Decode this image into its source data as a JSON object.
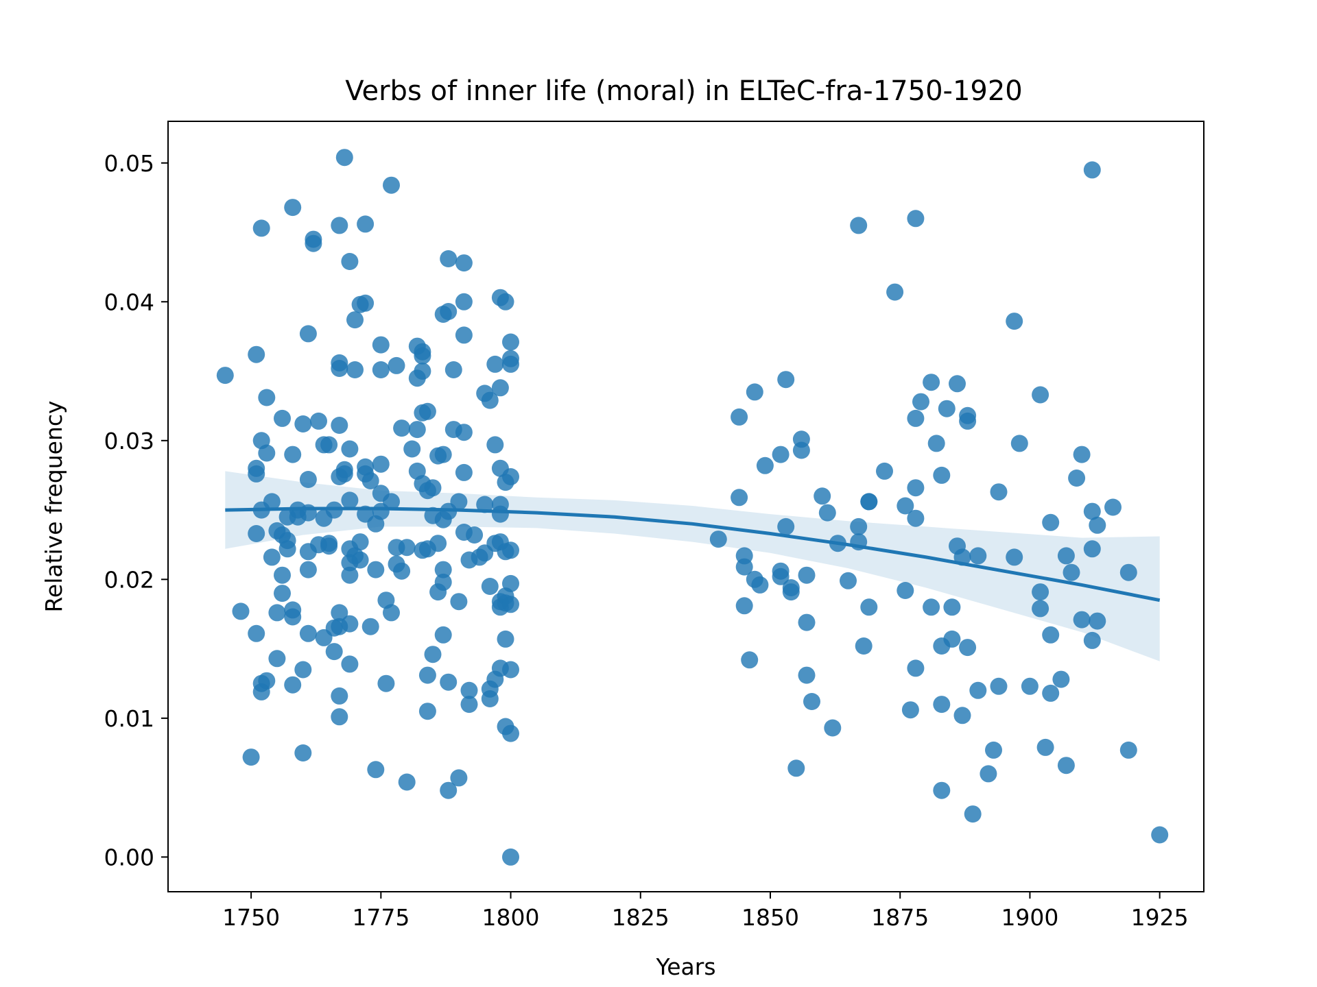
{
  "chart_data": {
    "type": "scatter",
    "title": "Verbs of inner life (moral) in ELTeC-fra-1750-1920",
    "xlabel": "Years",
    "ylabel": "Relative frequency",
    "xlim": [
      1734,
      1933.5
    ],
    "ylim": [
      -0.0025,
      0.053
    ],
    "xticks": [
      1750,
      1775,
      1800,
      1825,
      1850,
      1875,
      1900,
      1925
    ],
    "yticks": [
      0.0,
      0.01,
      0.02,
      0.03,
      0.04,
      0.05
    ],
    "xtick_labels": [
      "1750",
      "1775",
      "1800",
      "1825",
      "1850",
      "1875",
      "1900",
      "1925"
    ],
    "ytick_labels": [
      "0.00",
      "0.01",
      "0.02",
      "0.03",
      "0.04",
      "0.05"
    ],
    "grid": false,
    "legend": "none",
    "colors": {
      "points": "#1f77b4",
      "trend": "#1f77b4",
      "band": "#1f77b4"
    },
    "points": [
      [
        1745,
        0.0347
      ],
      [
        1748,
        0.0177
      ],
      [
        1750,
        0.0072
      ],
      [
        1751,
        0.0362
      ],
      [
        1751,
        0.028
      ],
      [
        1751,
        0.0276
      ],
      [
        1751,
        0.0233
      ],
      [
        1751,
        0.0161
      ],
      [
        1752,
        0.0453
      ],
      [
        1752,
        0.03
      ],
      [
        1752,
        0.025
      ],
      [
        1752,
        0.0125
      ],
      [
        1752,
        0.0119
      ],
      [
        1753,
        0.0331
      ],
      [
        1753,
        0.0291
      ],
      [
        1753,
        0.0127
      ],
      [
        1754,
        0.0256
      ],
      [
        1754,
        0.0216
      ],
      [
        1755,
        0.0235
      ],
      [
        1755,
        0.0176
      ],
      [
        1755,
        0.0143
      ],
      [
        1756,
        0.0316
      ],
      [
        1756,
        0.0232
      ],
      [
        1756,
        0.0203
      ],
      [
        1756,
        0.019
      ],
      [
        1757,
        0.0245
      ],
      [
        1757,
        0.0228
      ],
      [
        1757,
        0.0222
      ],
      [
        1758,
        0.0468
      ],
      [
        1758,
        0.029
      ],
      [
        1758,
        0.0178
      ],
      [
        1758,
        0.0173
      ],
      [
        1758,
        0.0124
      ],
      [
        1759,
        0.025
      ],
      [
        1759,
        0.0245
      ],
      [
        1760,
        0.0312
      ],
      [
        1760,
        0.0135
      ],
      [
        1760,
        0.0075
      ],
      [
        1761,
        0.0377
      ],
      [
        1761,
        0.0272
      ],
      [
        1761,
        0.0248
      ],
      [
        1761,
        0.022
      ],
      [
        1761,
        0.0207
      ],
      [
        1761,
        0.0161
      ],
      [
        1762,
        0.0445
      ],
      [
        1762,
        0.0442
      ],
      [
        1763,
        0.0314
      ],
      [
        1763,
        0.0225
      ],
      [
        1764,
        0.0297
      ],
      [
        1764,
        0.0244
      ],
      [
        1764,
        0.0158
      ],
      [
        1765,
        0.0297
      ],
      [
        1765,
        0.0226
      ],
      [
        1765,
        0.0224
      ],
      [
        1766,
        0.025
      ],
      [
        1766,
        0.0165
      ],
      [
        1766,
        0.0148
      ],
      [
        1767,
        0.0455
      ],
      [
        1767,
        0.0356
      ],
      [
        1767,
        0.0352
      ],
      [
        1767,
        0.0311
      ],
      [
        1767,
        0.0274
      ],
      [
        1767,
        0.0176
      ],
      [
        1767,
        0.0166
      ],
      [
        1767,
        0.0116
      ],
      [
        1767,
        0.0101
      ],
      [
        1768,
        0.0504
      ],
      [
        1768,
        0.0279
      ],
      [
        1768,
        0.0276
      ],
      [
        1769,
        0.0429
      ],
      [
        1769,
        0.0294
      ],
      [
        1769,
        0.0257
      ],
      [
        1769,
        0.0222
      ],
      [
        1769,
        0.0212
      ],
      [
        1769,
        0.0203
      ],
      [
        1769,
        0.0168
      ],
      [
        1769,
        0.0139
      ],
      [
        1770,
        0.0387
      ],
      [
        1770,
        0.0351
      ],
      [
        1770,
        0.0217
      ],
      [
        1771,
        0.0398
      ],
      [
        1771,
        0.0227
      ],
      [
        1771,
        0.0214
      ],
      [
        1772,
        0.0456
      ],
      [
        1772,
        0.0399
      ],
      [
        1772,
        0.0281
      ],
      [
        1772,
        0.0276
      ],
      [
        1772,
        0.0247
      ],
      [
        1773,
        0.0271
      ],
      [
        1773,
        0.0166
      ],
      [
        1774,
        0.024
      ],
      [
        1774,
        0.0207
      ],
      [
        1774,
        0.0063
      ],
      [
        1775,
        0.0369
      ],
      [
        1775,
        0.0351
      ],
      [
        1775,
        0.0283
      ],
      [
        1775,
        0.0262
      ],
      [
        1775,
        0.0249
      ],
      [
        1776,
        0.0185
      ],
      [
        1776,
        0.0125
      ],
      [
        1777,
        0.0484
      ],
      [
        1777,
        0.0256
      ],
      [
        1777,
        0.0176
      ],
      [
        1778,
        0.0354
      ],
      [
        1778,
        0.0223
      ],
      [
        1778,
        0.0211
      ],
      [
        1779,
        0.0309
      ],
      [
        1779,
        0.0206
      ],
      [
        1780,
        0.0223
      ],
      [
        1780,
        0.0054
      ],
      [
        1781,
        0.0294
      ],
      [
        1782,
        0.0368
      ],
      [
        1782,
        0.0345
      ],
      [
        1782,
        0.0308
      ],
      [
        1782,
        0.0278
      ],
      [
        1783,
        0.0364
      ],
      [
        1783,
        0.0361
      ],
      [
        1783,
        0.035
      ],
      [
        1783,
        0.032
      ],
      [
        1783,
        0.0269
      ],
      [
        1783,
        0.0221
      ],
      [
        1784,
        0.0321
      ],
      [
        1784,
        0.0264
      ],
      [
        1784,
        0.0222
      ],
      [
        1784,
        0.0131
      ],
      [
        1784,
        0.0105
      ],
      [
        1785,
        0.0266
      ],
      [
        1785,
        0.0246
      ],
      [
        1785,
        0.0146
      ],
      [
        1786,
        0.0289
      ],
      [
        1786,
        0.0226
      ],
      [
        1786,
        0.0191
      ],
      [
        1787,
        0.0391
      ],
      [
        1787,
        0.029
      ],
      [
        1787,
        0.0243
      ],
      [
        1787,
        0.0207
      ],
      [
        1787,
        0.0198
      ],
      [
        1787,
        0.016
      ],
      [
        1788,
        0.0431
      ],
      [
        1788,
        0.0393
      ],
      [
        1788,
        0.0249
      ],
      [
        1788,
        0.0126
      ],
      [
        1788,
        0.0048
      ],
      [
        1789,
        0.0351
      ],
      [
        1789,
        0.0308
      ],
      [
        1790,
        0.0256
      ],
      [
        1790,
        0.0184
      ],
      [
        1790,
        0.0057
      ],
      [
        1791,
        0.0428
      ],
      [
        1791,
        0.04
      ],
      [
        1791,
        0.0376
      ],
      [
        1791,
        0.0306
      ],
      [
        1791,
        0.0277
      ],
      [
        1791,
        0.0234
      ],
      [
        1792,
        0.0214
      ],
      [
        1792,
        0.012
      ],
      [
        1792,
        0.011
      ],
      [
        1793,
        0.0232
      ],
      [
        1794,
        0.0216
      ],
      [
        1795,
        0.0334
      ],
      [
        1795,
        0.0254
      ],
      [
        1795,
        0.0219
      ],
      [
        1796,
        0.0329
      ],
      [
        1796,
        0.0195
      ],
      [
        1796,
        0.0121
      ],
      [
        1796,
        0.0114
      ],
      [
        1797,
        0.0355
      ],
      [
        1797,
        0.0297
      ],
      [
        1797,
        0.0226
      ],
      [
        1797,
        0.0128
      ],
      [
        1798,
        0.0403
      ],
      [
        1798,
        0.0338
      ],
      [
        1798,
        0.028
      ],
      [
        1798,
        0.0254
      ],
      [
        1798,
        0.0247
      ],
      [
        1798,
        0.0227
      ],
      [
        1798,
        0.0184
      ],
      [
        1798,
        0.018
      ],
      [
        1798,
        0.0136
      ],
      [
        1799,
        0.04
      ],
      [
        1799,
        0.027
      ],
      [
        1799,
        0.022
      ],
      [
        1799,
        0.0188
      ],
      [
        1799,
        0.0183
      ],
      [
        1799,
        0.0157
      ],
      [
        1799,
        0.0094
      ],
      [
        1800,
        0.0371
      ],
      [
        1800,
        0.0359
      ],
      [
        1800,
        0.0355
      ],
      [
        1800,
        0.0274
      ],
      [
        1800,
        0.0221
      ],
      [
        1800,
        0.0197
      ],
      [
        1800,
        0.0182
      ],
      [
        1800,
        0.0135
      ],
      [
        1800,
        0.0089
      ],
      [
        1800,
        0.0
      ],
      [
        1840,
        0.0229
      ],
      [
        1844,
        0.0259
      ],
      [
        1844,
        0.0317
      ],
      [
        1845,
        0.0217
      ],
      [
        1845,
        0.0209
      ],
      [
        1845,
        0.0181
      ],
      [
        1846,
        0.0142
      ],
      [
        1847,
        0.0335
      ],
      [
        1847,
        0.02
      ],
      [
        1848,
        0.0196
      ],
      [
        1849,
        0.0282
      ],
      [
        1852,
        0.029
      ],
      [
        1852,
        0.0206
      ],
      [
        1852,
        0.0202
      ],
      [
        1853,
        0.0344
      ],
      [
        1853,
        0.0238
      ],
      [
        1854,
        0.0194
      ],
      [
        1854,
        0.0191
      ],
      [
        1855,
        0.0064
      ],
      [
        1856,
        0.0301
      ],
      [
        1856,
        0.0293
      ],
      [
        1857,
        0.0203
      ],
      [
        1857,
        0.0169
      ],
      [
        1857,
        0.0131
      ],
      [
        1858,
        0.0112
      ],
      [
        1860,
        0.026
      ],
      [
        1861,
        0.0248
      ],
      [
        1862,
        0.0093
      ],
      [
        1863,
        0.0226
      ],
      [
        1865,
        0.0199
      ],
      [
        1867,
        0.0455
      ],
      [
        1867,
        0.0238
      ],
      [
        1867,
        0.0227
      ],
      [
        1868,
        0.0152
      ],
      [
        1869,
        0.0256
      ],
      [
        1869,
        0.0256
      ],
      [
        1869,
        0.018
      ],
      [
        1872,
        0.0278
      ],
      [
        1874,
        0.0407
      ],
      [
        1876,
        0.0253
      ],
      [
        1876,
        0.0192
      ],
      [
        1877,
        0.0106
      ],
      [
        1878,
        0.046
      ],
      [
        1878,
        0.0316
      ],
      [
        1878,
        0.0266
      ],
      [
        1878,
        0.0244
      ],
      [
        1878,
        0.0136
      ],
      [
        1879,
        0.0328
      ],
      [
        1881,
        0.0342
      ],
      [
        1881,
        0.018
      ],
      [
        1882,
        0.0298
      ],
      [
        1883,
        0.0275
      ],
      [
        1883,
        0.0152
      ],
      [
        1883,
        0.011
      ],
      [
        1883,
        0.0048
      ],
      [
        1884,
        0.0323
      ],
      [
        1885,
        0.018
      ],
      [
        1885,
        0.0157
      ],
      [
        1886,
        0.0341
      ],
      [
        1886,
        0.0224
      ],
      [
        1887,
        0.0216
      ],
      [
        1887,
        0.0102
      ],
      [
        1888,
        0.0318
      ],
      [
        1888,
        0.0314
      ],
      [
        1888,
        0.0151
      ],
      [
        1889,
        0.0031
      ],
      [
        1890,
        0.0217
      ],
      [
        1890,
        0.012
      ],
      [
        1892,
        0.006
      ],
      [
        1893,
        0.0077
      ],
      [
        1894,
        0.0263
      ],
      [
        1894,
        0.0123
      ],
      [
        1897,
        0.0386
      ],
      [
        1897,
        0.0216
      ],
      [
        1898,
        0.0298
      ],
      [
        1900,
        0.0123
      ],
      [
        1902,
        0.0333
      ],
      [
        1902,
        0.0191
      ],
      [
        1902,
        0.0179
      ],
      [
        1903,
        0.0079
      ],
      [
        1904,
        0.0241
      ],
      [
        1904,
        0.016
      ],
      [
        1904,
        0.0118
      ],
      [
        1906,
        0.0128
      ],
      [
        1907,
        0.0217
      ],
      [
        1907,
        0.0066
      ],
      [
        1908,
        0.0205
      ],
      [
        1909,
        0.0273
      ],
      [
        1910,
        0.029
      ],
      [
        1910,
        0.0171
      ],
      [
        1912,
        0.0495
      ],
      [
        1912,
        0.0249
      ],
      [
        1912,
        0.0222
      ],
      [
        1912,
        0.0156
      ],
      [
        1913,
        0.0239
      ],
      [
        1913,
        0.017
      ],
      [
        1916,
        0.0252
      ],
      [
        1919,
        0.0205
      ],
      [
        1919,
        0.0077
      ],
      [
        1925,
        0.0016
      ]
    ],
    "trend": {
      "x": [
        1745,
        1760,
        1775,
        1790,
        1805,
        1820,
        1835,
        1850,
        1865,
        1880,
        1895,
        1910,
        1925
      ],
      "y": [
        0.025,
        0.0251,
        0.0251,
        0.025,
        0.0248,
        0.0245,
        0.024,
        0.0233,
        0.0225,
        0.0216,
        0.0206,
        0.0196,
        0.0185
      ],
      "ci_lower": [
        0.0222,
        0.0232,
        0.0238,
        0.0238,
        0.0237,
        0.0233,
        0.0227,
        0.0219,
        0.0208,
        0.0194,
        0.0178,
        0.0162,
        0.0141
      ],
      "ci_upper": [
        0.0278,
        0.027,
        0.0264,
        0.0262,
        0.0259,
        0.0257,
        0.0253,
        0.0247,
        0.0242,
        0.0238,
        0.0234,
        0.023,
        0.0231
      ]
    }
  }
}
